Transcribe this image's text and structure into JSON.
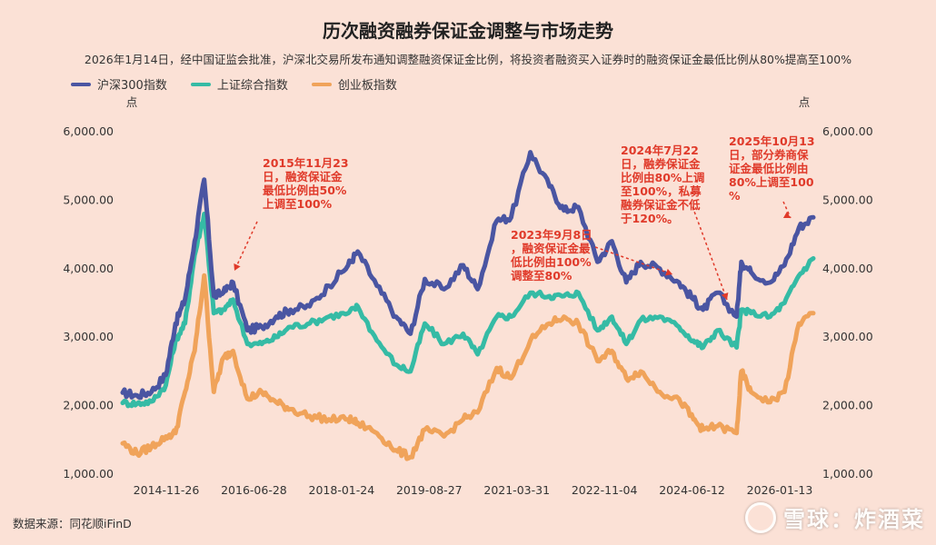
{
  "title": "历次融资融券保证金调整与市场走势",
  "subtitle": "2026年1月14日，经中国证监会批准，沪深北交易所发布通知调整融资保证金比例，将投资者融资买入证券时的融资保证金最低比例从80%提高至100%",
  "source": "数据来源：同花顺iFinD",
  "watermark": "雪球：炸酒菜",
  "chart_data": {
    "type": "line",
    "y_unit_left": "点",
    "y_unit_right": "点",
    "ylim": [
      1000,
      6000
    ],
    "y_ticks": [
      "1,000.00",
      "2,000.00",
      "3,000.00",
      "4,000.00",
      "5,000.00",
      "6,000.00"
    ],
    "x_tick_labels": [
      "2014-11-26",
      "2016-06-28",
      "2018-01-24",
      "2019-08-27",
      "2021-03-31",
      "2022-11-04",
      "2024-06-12",
      "2026-01-13"
    ],
    "x_range": [
      "2014-01",
      "2026-01"
    ],
    "x": [
      "2014-01",
      "2014-04",
      "2014-07",
      "2014-10",
      "2014-12",
      "2015-02",
      "2015-04",
      "2015-06",
      "2015-08",
      "2015-10",
      "2015-12",
      "2016-03",
      "2016-06",
      "2016-09",
      "2016-12",
      "2017-04",
      "2017-08",
      "2017-12",
      "2018-02",
      "2018-06",
      "2018-10",
      "2019-01",
      "2019-04",
      "2019-08",
      "2019-12",
      "2020-03",
      "2020-07",
      "2020-10",
      "2021-02",
      "2021-06",
      "2021-09",
      "2021-12",
      "2022-04",
      "2022-07",
      "2022-10",
      "2023-01",
      "2023-05",
      "2023-09",
      "2023-12",
      "2024-02",
      "2024-05",
      "2024-09",
      "2024-10",
      "2024-12",
      "2025-04",
      "2025-07",
      "2025-10",
      "2026-01"
    ],
    "series": [
      {
        "name": "沪深300指数",
        "color": "#4a55a2",
        "values": [
          2190,
          2150,
          2200,
          2450,
          3200,
          3550,
          4400,
          5300,
          3600,
          3650,
          3800,
          3100,
          3150,
          3300,
          3400,
          3450,
          3750,
          4050,
          4250,
          3750,
          3300,
          3050,
          3850,
          3700,
          4050,
          3700,
          4700,
          4750,
          5700,
          5200,
          4850,
          4900,
          4100,
          4400,
          3800,
          4100,
          4000,
          3800,
          3550,
          3400,
          3650,
          3300,
          4100,
          3950,
          3800,
          4050,
          4600,
          4750
        ]
      },
      {
        "name": "上证综合指数",
        "color": "#35bba5",
        "values": [
          2040,
          2030,
          2060,
          2300,
          2950,
          3200,
          4200,
          4800,
          3350,
          3400,
          3550,
          2900,
          2900,
          3000,
          3150,
          3200,
          3300,
          3350,
          3450,
          2950,
          2600,
          2500,
          3200,
          2900,
          3050,
          2750,
          3300,
          3300,
          3650,
          3600,
          3600,
          3650,
          3100,
          3300,
          2900,
          3250,
          3300,
          3150,
          2950,
          2850,
          3100,
          2850,
          3400,
          3350,
          3300,
          3500,
          3900,
          4150
        ]
      },
      {
        "name": "创业板指数",
        "color": "#f0a35a",
        "values": [
          1450,
          1300,
          1400,
          1550,
          1600,
          2200,
          2800,
          3900,
          2200,
          2700,
          2800,
          2100,
          2200,
          2050,
          1950,
          1850,
          1800,
          1800,
          1750,
          1600,
          1350,
          1250,
          1650,
          1550,
          1800,
          1900,
          2550,
          2400,
          2950,
          3200,
          3300,
          3200,
          2650,
          2800,
          2400,
          2500,
          2200,
          2100,
          1800,
          1650,
          1700,
          1600,
          2500,
          2200,
          2050,
          2200,
          3200,
          3350
        ]
      }
    ],
    "annotations": [
      {
        "date": "2015-12",
        "value": 3800,
        "lines": [
          "2015年11月23",
          "日，融资保证金",
          "最低比例由50%",
          "上调至100%"
        ]
      },
      {
        "date": "2023-09",
        "value": 3800,
        "lines": [
          "2023年9月8日",
          "，融资保证金最",
          "低比例由100%",
          "调整至80%"
        ]
      },
      {
        "date": "2024-09",
        "value": 3300,
        "lines": [
          "2024年7月22",
          "日，融券保证金",
          "比例由80%上调",
          "至100%，私募",
          "融券保证金不低",
          "于120%。"
        ]
      },
      {
        "date": "2025-10",
        "value": 4600,
        "lines": [
          "2025年10月13",
          "日，部分券商保",
          "证金最低比例由",
          "80%上调至100",
          "%"
        ]
      }
    ]
  }
}
